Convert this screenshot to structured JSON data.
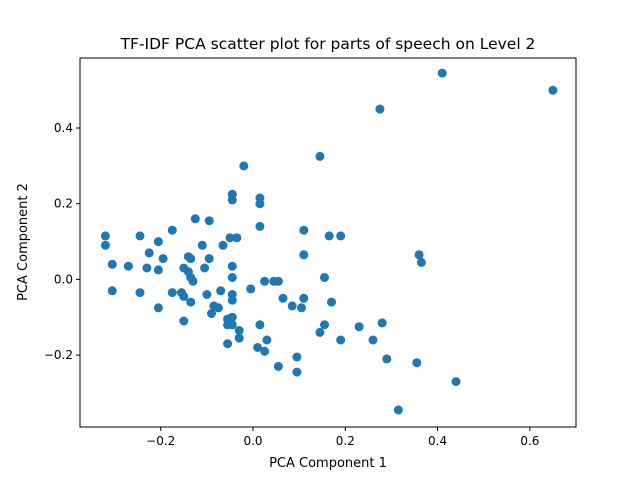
{
  "chart_data": {
    "type": "scatter",
    "title": "TF-IDF PCA scatter plot for parts of speech on Level 2",
    "xlabel": "PCA Component 1",
    "ylabel": "PCA Component 2",
    "xlim": [
      -0.375,
      0.7
    ],
    "ylim": [
      -0.39,
      0.585
    ],
    "xticks": [
      -0.2,
      0.0,
      0.2,
      0.4,
      0.6
    ],
    "xtick_labels": [
      "−0.2",
      "0.0",
      "0.2",
      "0.4",
      "0.6"
    ],
    "yticks": [
      -0.2,
      0.0,
      0.2,
      0.4
    ],
    "ytick_labels": [
      "−0.2",
      "0.0",
      "0.2",
      "0.4"
    ],
    "grid": false,
    "marker_color": "#1f77b4",
    "series": [
      {
        "points": [
          [
            0.41,
            0.545
          ],
          [
            0.65,
            0.5
          ],
          [
            0.275,
            0.45
          ],
          [
            0.145,
            0.325
          ],
          [
            -0.02,
            0.3
          ],
          [
            -0.045,
            0.225
          ],
          [
            -0.045,
            0.21
          ],
          [
            0.015,
            0.215
          ],
          [
            0.015,
            0.2
          ],
          [
            -0.125,
            0.16
          ],
          [
            -0.095,
            0.155
          ],
          [
            0.015,
            0.14
          ],
          [
            -0.175,
            0.13
          ],
          [
            0.11,
            0.13
          ],
          [
            -0.32,
            0.115
          ],
          [
            -0.245,
            0.115
          ],
          [
            0.165,
            0.115
          ],
          [
            0.19,
            0.115
          ],
          [
            -0.05,
            0.11
          ],
          [
            -0.035,
            0.11
          ],
          [
            -0.205,
            0.1
          ],
          [
            -0.32,
            0.09
          ],
          [
            -0.11,
            0.09
          ],
          [
            -0.065,
            0.09
          ],
          [
            -0.225,
            0.07
          ],
          [
            0.11,
            0.065
          ],
          [
            0.36,
            0.065
          ],
          [
            -0.14,
            0.06
          ],
          [
            -0.195,
            0.055
          ],
          [
            -0.135,
            0.055
          ],
          [
            -0.095,
            0.055
          ],
          [
            0.365,
            0.045
          ],
          [
            -0.305,
            0.04
          ],
          [
            -0.27,
            0.035
          ],
          [
            -0.23,
            0.03
          ],
          [
            -0.15,
            0.03
          ],
          [
            -0.105,
            0.03
          ],
          [
            -0.045,
            0.035
          ],
          [
            -0.205,
            0.025
          ],
          [
            -0.14,
            0.02
          ],
          [
            -0.135,
            0.005
          ],
          [
            -0.045,
            0.005
          ],
          [
            0.155,
            0.005
          ],
          [
            -0.13,
            -0.005
          ],
          [
            0.025,
            -0.005
          ],
          [
            0.045,
            -0.005
          ],
          [
            0.055,
            -0.005
          ],
          [
            -0.305,
            -0.03
          ],
          [
            -0.245,
            -0.035
          ],
          [
            -0.175,
            -0.035
          ],
          [
            -0.155,
            -0.035
          ],
          [
            -0.07,
            -0.03
          ],
          [
            -0.005,
            -0.025
          ],
          [
            -0.15,
            -0.045
          ],
          [
            -0.1,
            -0.04
          ],
          [
            -0.045,
            -0.04
          ],
          [
            0.065,
            -0.05
          ],
          [
            0.11,
            -0.05
          ],
          [
            -0.135,
            -0.06
          ],
          [
            -0.045,
            -0.055
          ],
          [
            0.17,
            -0.06
          ],
          [
            -0.085,
            -0.07
          ],
          [
            -0.075,
            -0.075
          ],
          [
            0.085,
            -0.07
          ],
          [
            0.105,
            -0.075
          ],
          [
            -0.205,
            -0.075
          ],
          [
            -0.09,
            -0.09
          ],
          [
            -0.055,
            -0.105
          ],
          [
            -0.045,
            -0.1
          ],
          [
            -0.15,
            -0.11
          ],
          [
            -0.055,
            -0.12
          ],
          [
            -0.045,
            -0.12
          ],
          [
            0.015,
            -0.12
          ],
          [
            0.155,
            -0.12
          ],
          [
            0.28,
            -0.115
          ],
          [
            -0.03,
            -0.135
          ],
          [
            0.145,
            -0.14
          ],
          [
            0.23,
            -0.125
          ],
          [
            -0.03,
            -0.155
          ],
          [
            0.03,
            -0.16
          ],
          [
            0.19,
            -0.16
          ],
          [
            0.26,
            -0.16
          ],
          [
            -0.055,
            -0.17
          ],
          [
            0.01,
            -0.18
          ],
          [
            0.025,
            -0.19
          ],
          [
            0.095,
            -0.205
          ],
          [
            0.29,
            -0.21
          ],
          [
            0.355,
            -0.22
          ],
          [
            0.055,
            -0.23
          ],
          [
            0.095,
            -0.245
          ],
          [
            0.44,
            -0.27
          ],
          [
            0.315,
            -0.345
          ]
        ]
      }
    ]
  }
}
